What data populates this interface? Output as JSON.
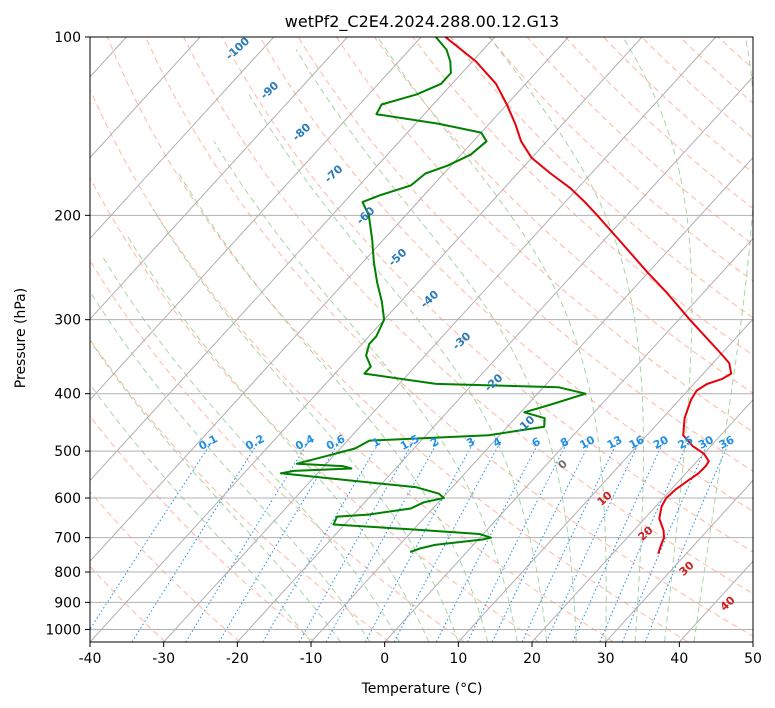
{
  "chart_data": {
    "type": "line",
    "subtype": "skew-T log-P diagram",
    "title": "wetPf2_C2E4.2024.288.00.12.G13",
    "xlabel": "Temperature (°C)",
    "ylabel": "Pressure (hPa)",
    "xlim": [
      -40,
      50
    ],
    "ylim": [
      1050,
      100
    ],
    "y_scale": "log",
    "grid": true,
    "x_ticks": [
      "-40",
      "-30",
      "-20",
      "-10",
      "0",
      "10",
      "20",
      "30",
      "40",
      "50"
    ],
    "y_ticks": [
      "100",
      "200",
      "300",
      "400",
      "500",
      "600",
      "700",
      "800",
      "900",
      "1000"
    ],
    "colors": {
      "temperature": "#e8000b",
      "dewpoint": "#008000",
      "isotherm_label": "#2b7bb9",
      "mixing_ratio": "#1f8fe6",
      "dry_adiabat": "#ff9a7a",
      "moist_adiabat": "#7fc47f",
      "grid": "#b0b0b0"
    },
    "isotherm_labels": [
      "-100",
      "-90",
      "-80",
      "-70",
      "-60",
      "-50",
      "-40",
      "-30",
      "-20",
      "-10",
      "0",
      "10",
      "20",
      "30",
      "40"
    ],
    "mixing_ratio_labels": [
      "0.1",
      "0.2",
      "0.4",
      "0.6",
      "1",
      "1.5",
      "2",
      "3",
      "4",
      "6",
      "8",
      "10",
      "13",
      "16",
      "20",
      "25",
      "30",
      "36"
    ],
    "series": [
      {
        "role": "temperature",
        "color": "#e8000b",
        "points": [
          {
            "p": 745,
            "t": 26.2
          },
          {
            "p": 720,
            "t": 25.5
          },
          {
            "p": 700,
            "t": 25.0
          },
          {
            "p": 680,
            "t": 24.0
          },
          {
            "p": 650,
            "t": 22.0
          },
          {
            "p": 620,
            "t": 20.8
          },
          {
            "p": 600,
            "t": 20.4
          },
          {
            "p": 580,
            "t": 20.6
          },
          {
            "p": 560,
            "t": 21.2
          },
          {
            "p": 545,
            "t": 21.7
          },
          {
            "p": 530,
            "t": 21.8
          },
          {
            "p": 520,
            "t": 21.6
          },
          {
            "p": 505,
            "t": 20.0
          },
          {
            "p": 490,
            "t": 17.5
          },
          {
            "p": 470,
            "t": 14.9
          },
          {
            "p": 440,
            "t": 13.0
          },
          {
            "p": 410,
            "t": 11.6
          },
          {
            "p": 395,
            "t": 11.2
          },
          {
            "p": 385,
            "t": 11.8
          },
          {
            "p": 378,
            "t": 13.2
          },
          {
            "p": 370,
            "t": 13.8
          },
          {
            "p": 355,
            "t": 12.2
          },
          {
            "p": 340,
            "t": 9.5
          },
          {
            "p": 300,
            "t": 1.5
          },
          {
            "p": 270,
            "t": -5.0
          },
          {
            "p": 250,
            "t": -10.0
          },
          {
            "p": 220,
            "t": -18.0
          },
          {
            "p": 200,
            "t": -24.0
          },
          {
            "p": 190,
            "t": -27.3
          },
          {
            "p": 180,
            "t": -31.0
          },
          {
            "p": 170,
            "t": -35.5
          },
          {
            "p": 160,
            "t": -40.0
          },
          {
            "p": 150,
            "t": -43.5
          },
          {
            "p": 140,
            "t": -46.5
          },
          {
            "p": 130,
            "t": -50.0
          },
          {
            "p": 120,
            "t": -54.0
          },
          {
            "p": 110,
            "t": -59.5
          },
          {
            "p": 105,
            "t": -63.0
          },
          {
            "p": 100,
            "t": -66.7
          }
        ]
      },
      {
        "role": "dewpoint",
        "color": "#008000",
        "points": [
          {
            "p": 740,
            "t": -7.7
          },
          {
            "p": 730,
            "t": -6.8
          },
          {
            "p": 720,
            "t": -5.2
          },
          {
            "p": 705,
            "t": 0.6
          },
          {
            "p": 700,
            "t": 1.5
          },
          {
            "p": 690,
            "t": -0.5
          },
          {
            "p": 678,
            "t": -10.0
          },
          {
            "p": 665,
            "t": -21.5
          },
          {
            "p": 645,
            "t": -22.0
          },
          {
            "p": 640,
            "t": -18.0
          },
          {
            "p": 625,
            "t": -13.0
          },
          {
            "p": 610,
            "t": -12.0
          },
          {
            "p": 600,
            "t": -9.8
          },
          {
            "p": 590,
            "t": -11.0
          },
          {
            "p": 575,
            "t": -15.0
          },
          {
            "p": 560,
            "t": -25.0
          },
          {
            "p": 545,
            "t": -35.0
          },
          {
            "p": 540,
            "t": -33.5
          },
          {
            "p": 535,
            "t": -26.0
          },
          {
            "p": 530,
            "t": -27.5
          },
          {
            "p": 525,
            "t": -34.0
          },
          {
            "p": 510,
            "t": -31.0
          },
          {
            "p": 495,
            "t": -28.0
          },
          {
            "p": 480,
            "t": -27.0
          },
          {
            "p": 470,
            "t": -11.5
          },
          {
            "p": 455,
            "t": -5.0
          },
          {
            "p": 440,
            "t": -6.0
          },
          {
            "p": 430,
            "t": -9.5
          },
          {
            "p": 418,
            "t": -7.0
          },
          {
            "p": 400,
            "t": -3.5
          },
          {
            "p": 390,
            "t": -8.0
          },
          {
            "p": 385,
            "t": -25.0
          },
          {
            "p": 370,
            "t": -36.0
          },
          {
            "p": 360,
            "t": -36.0
          },
          {
            "p": 345,
            "t": -38.0
          },
          {
            "p": 330,
            "t": -39.0
          },
          {
            "p": 320,
            "t": -39.0
          },
          {
            "p": 300,
            "t": -40.0
          },
          {
            "p": 280,
            "t": -42.5
          },
          {
            "p": 260,
            "t": -45.5
          },
          {
            "p": 240,
            "t": -48.5
          },
          {
            "p": 220,
            "t": -51.5
          },
          {
            "p": 200,
            "t": -55.0
          },
          {
            "p": 190,
            "t": -57.5
          },
          {
            "p": 185,
            "t": -56.0
          },
          {
            "p": 178,
            "t": -53.0
          },
          {
            "p": 170,
            "t": -52.5
          },
          {
            "p": 165,
            "t": -50.5
          },
          {
            "p": 158,
            "t": -48.7
          },
          {
            "p": 150,
            "t": -48.2
          },
          {
            "p": 145,
            "t": -50.0
          },
          {
            "p": 140,
            "t": -57.0
          },
          {
            "p": 135,
            "t": -66.5
          },
          {
            "p": 130,
            "t": -67.0
          },
          {
            "p": 125,
            "t": -63.5
          },
          {
            "p": 120,
            "t": -61.5
          },
          {
            "p": 115,
            "t": -61.5
          },
          {
            "p": 110,
            "t": -63.0
          },
          {
            "p": 105,
            "t": -65.0
          },
          {
            "p": 100,
            "t": -68.0
          }
        ]
      }
    ]
  }
}
